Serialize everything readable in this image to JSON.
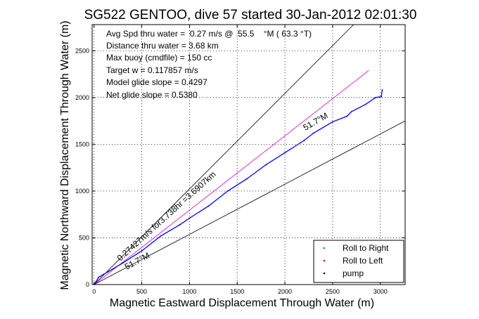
{
  "chart_data": {
    "type": "line",
    "title": "SG522 GENTOO, dive 57 started 30-Jan-2012 02:01:30",
    "xlabel": "Magnetic Eastward Displacement Through Water (m)",
    "ylabel": "Magnetic Northward Displacement Through Water (m)",
    "xlim": [
      -20,
      3260
    ],
    "ylim": [
      0,
      2780
    ],
    "grid": true,
    "x_ticks": [
      0,
      500,
      1000,
      1500,
      2000,
      2500,
      3000
    ],
    "y_ticks": [
      0,
      500,
      1000,
      1500,
      2000,
      2500
    ],
    "annotations": [
      "Avg Spd thru water =  0.27 m/s @  55.5    °M ( 63.3 °T)",
      "Distance thru water =  3.68 km",
      "Max buoy (cmdfile) = 150 cc",
      "Target w = 0.117857 m/s",
      "Model glide slope = 0.4297",
      "Net glide slope = 0.5380"
    ],
    "line_labels": {
      "upper": "51.7°M",
      "middle": "0.27427m/s for3.738hr =3.6907km",
      "lower": "51.7°M"
    },
    "legend": {
      "placement": "bottom-right",
      "entries": [
        {
          "label": "Roll to Right",
          "color": "#00b000"
        },
        {
          "label": "Roll to Left",
          "color": "#ff0000"
        },
        {
          "label": "pump",
          "color": "#000080"
        }
      ]
    },
    "series": [
      {
        "color": "#000000",
        "style": "line",
        "x": [
          0,
          2720
        ],
        "y": [
          0,
          2780
        ]
      },
      {
        "color": "#000000",
        "style": "line",
        "x": [
          0,
          3260
        ],
        "y": [
          0,
          1750
        ]
      },
      {
        "color": "#cc00cc",
        "style": "line",
        "x": [
          0,
          2880
        ],
        "y": [
          0,
          2290
        ]
      },
      {
        "color": "#0000ff",
        "style": "track",
        "x": [
          0,
          50,
          100,
          150,
          300,
          500,
          700,
          900,
          1000,
          1200,
          1400,
          1600,
          1800,
          2000,
          2200,
          2300,
          2500,
          2650,
          2700,
          2850,
          2950,
          3010,
          3020
        ],
        "y": [
          0,
          80,
          110,
          140,
          230,
          360,
          520,
          640,
          710,
          840,
          1000,
          1130,
          1280,
          1410,
          1540,
          1620,
          1740,
          1800,
          1850,
          1930,
          2000,
          2010,
          2080
        ]
      }
    ]
  }
}
